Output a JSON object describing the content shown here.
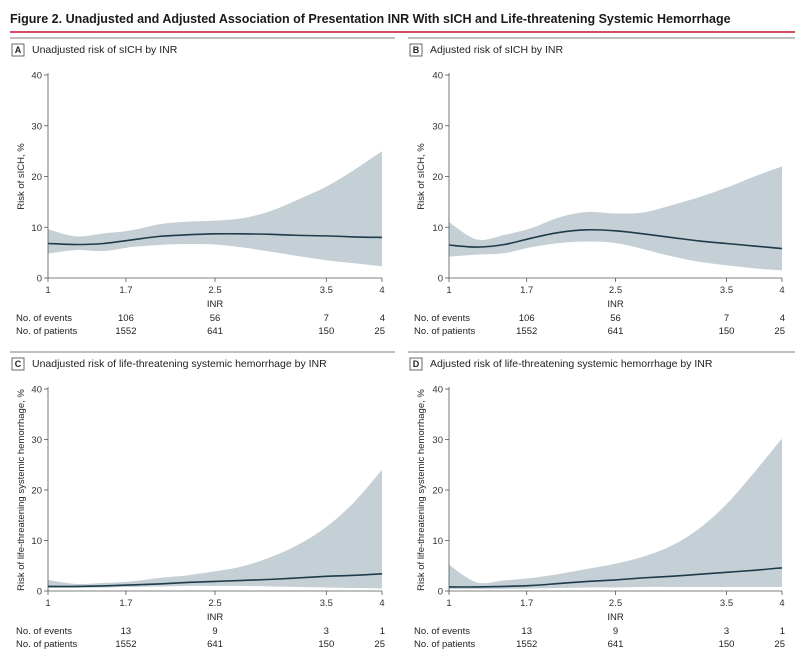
{
  "figure": {
    "title": "Figure 2. Unadjusted and Adjusted Association of Presentation INR With sICH and Life-threatening Systemic Hemorrhage",
    "accent_color": "#c8102e",
    "band_color": "#c5d0d6",
    "line_color": "#1d3b4a",
    "axis_color": "#555555"
  },
  "chart_data": [
    {
      "type": "area",
      "letter": "A",
      "title": "Unadjusted risk of sICH by INR",
      "xlabel": "INR",
      "ylabel": "Risk of sICH, %",
      "xlim": [
        1,
        4
      ],
      "ylim": [
        0,
        40
      ],
      "xticks": [
        1,
        1.7,
        2.5,
        3.5,
        4
      ],
      "yticks": [
        0,
        10,
        20,
        30,
        40
      ],
      "grid": false,
      "series": [
        {
          "x": [
            1,
            1.25,
            1.5,
            1.75,
            2,
            2.25,
            2.5,
            2.75,
            3,
            3.25,
            3.5,
            3.75,
            4
          ],
          "y": [
            6.8,
            6.6,
            6.8,
            7.5,
            8.2,
            8.5,
            8.7,
            8.7,
            8.6,
            8.4,
            8.3,
            8.1,
            8.0
          ],
          "lower": [
            4.8,
            5.5,
            5.3,
            6.1,
            6.5,
            6.7,
            6.6,
            6.0,
            5.2,
            4.3,
            3.5,
            2.9,
            2.3
          ],
          "upper": [
            9.6,
            8.2,
            8.8,
            9.4,
            10.6,
            11.1,
            11.3,
            11.8,
            13.2,
            15.5,
            18.0,
            21.3,
            25.0
          ]
        }
      ],
      "table": {
        "rows": [
          {
            "label": "No. of events",
            "values": [
              {
                "x": 1.7,
                "v": "106"
              },
              {
                "x": 2.5,
                "v": "56"
              },
              {
                "x": 3.5,
                "v": "7"
              },
              {
                "x": 4,
                "v": "4"
              }
            ]
          },
          {
            "label": "No. of patients",
            "values": [
              {
                "x": 1.7,
                "v": "1552"
              },
              {
                "x": 2.5,
                "v": "641"
              },
              {
                "x": 3.5,
                "v": "150"
              },
              {
                "x": 4,
                "v": "25"
              }
            ]
          }
        ]
      }
    },
    {
      "type": "area",
      "letter": "B",
      "title": "Adjusted risk of sICH by INR",
      "xlabel": "INR",
      "ylabel": "Risk of sICH, %",
      "xlim": [
        1,
        4
      ],
      "ylim": [
        0,
        40
      ],
      "xticks": [
        1,
        1.7,
        2.5,
        3.5,
        4
      ],
      "yticks": [
        0,
        10,
        20,
        30,
        40
      ],
      "grid": false,
      "series": [
        {
          "x": [
            1,
            1.25,
            1.5,
            1.75,
            2,
            2.25,
            2.5,
            2.75,
            3,
            3.25,
            3.5,
            3.75,
            4
          ],
          "y": [
            6.5,
            6.1,
            6.6,
            7.9,
            9.0,
            9.5,
            9.3,
            8.7,
            8.0,
            7.3,
            6.8,
            6.3,
            5.8
          ],
          "lower": [
            4.2,
            4.6,
            4.9,
            6.1,
            6.9,
            7.2,
            6.9,
            5.7,
            4.3,
            3.2,
            2.5,
            1.9,
            1.5
          ],
          "upper": [
            11.0,
            7.6,
            8.5,
            9.9,
            12.0,
            13.0,
            12.7,
            12.9,
            14.3,
            15.9,
            17.8,
            20.0,
            22.0
          ]
        }
      ],
      "table": {
        "rows": [
          {
            "label": "No. of events",
            "values": [
              {
                "x": 1.7,
                "v": "106"
              },
              {
                "x": 2.5,
                "v": "56"
              },
              {
                "x": 3.5,
                "v": "7"
              },
              {
                "x": 4,
                "v": "4"
              }
            ]
          },
          {
            "label": "No. of patients",
            "values": [
              {
                "x": 1.7,
                "v": "1552"
              },
              {
                "x": 2.5,
                "v": "641"
              },
              {
                "x": 3.5,
                "v": "150"
              },
              {
                "x": 4,
                "v": "25"
              }
            ]
          }
        ]
      }
    },
    {
      "type": "area",
      "letter": "C",
      "title": "Unadjusted risk of life-threatening systemic hemorrhage by INR",
      "xlabel": "INR",
      "ylabel": "Risk of life-threatening systemic hemorrhage, %",
      "xlim": [
        1,
        4
      ],
      "ylim": [
        0,
        40
      ],
      "xticks": [
        1,
        1.7,
        2.5,
        3.5,
        4
      ],
      "yticks": [
        0,
        10,
        20,
        30,
        40
      ],
      "grid": false,
      "series": [
        {
          "x": [
            1,
            1.25,
            1.5,
            1.75,
            2,
            2.25,
            2.5,
            2.75,
            3,
            3.25,
            3.5,
            3.75,
            4
          ],
          "y": [
            0.9,
            0.9,
            1.0,
            1.2,
            1.4,
            1.7,
            1.9,
            2.1,
            2.3,
            2.6,
            2.9,
            3.1,
            3.4
          ],
          "lower": [
            0.6,
            0.6,
            0.7,
            0.8,
            0.9,
            1.0,
            1.0,
            1.0,
            0.9,
            0.8,
            0.7,
            0.6,
            0.5
          ],
          "upper": [
            2.2,
            1.4,
            1.6,
            1.9,
            2.6,
            3.1,
            3.9,
            4.9,
            6.7,
            9.2,
            12.7,
            17.6,
            24.0
          ]
        }
      ],
      "table": {
        "rows": [
          {
            "label": "No. of events",
            "values": [
              {
                "x": 1.7,
                "v": "13"
              },
              {
                "x": 2.5,
                "v": "9"
              },
              {
                "x": 3.5,
                "v": "3"
              },
              {
                "x": 4,
                "v": "1"
              }
            ]
          },
          {
            "label": "No. of patients",
            "values": [
              {
                "x": 1.7,
                "v": "1552"
              },
              {
                "x": 2.5,
                "v": "641"
              },
              {
                "x": 3.5,
                "v": "150"
              },
              {
                "x": 4,
                "v": "25"
              }
            ]
          }
        ]
      }
    },
    {
      "type": "area",
      "letter": "D",
      "title": "Adjusted risk of life-threatening systemic hemorrhage by INR",
      "xlabel": "INR",
      "ylabel": "Risk of life-threatening systemic hemorrhage, %",
      "xlim": [
        1,
        4
      ],
      "ylim": [
        0,
        40
      ],
      "xticks": [
        1,
        1.7,
        2.5,
        3.5,
        4
      ],
      "yticks": [
        0,
        10,
        20,
        30,
        40
      ],
      "grid": false,
      "series": [
        {
          "x": [
            1,
            1.25,
            1.5,
            1.75,
            2,
            2.25,
            2.5,
            2.75,
            3,
            3.25,
            3.5,
            3.75,
            4
          ],
          "y": [
            0.8,
            0.8,
            0.9,
            1.1,
            1.5,
            1.9,
            2.2,
            2.6,
            2.9,
            3.3,
            3.7,
            4.1,
            4.6
          ],
          "lower": [
            0.4,
            0.4,
            0.4,
            0.5,
            0.6,
            0.7,
            0.7,
            0.8,
            0.8,
            0.8,
            0.8,
            0.8,
            0.8
          ],
          "upper": [
            5.2,
            1.7,
            2.1,
            2.6,
            3.4,
            4.4,
            5.4,
            6.8,
            8.9,
            12.3,
            17.2,
            23.5,
            30.2
          ]
        }
      ],
      "table": {
        "rows": [
          {
            "label": "No. of events",
            "values": [
              {
                "x": 1.7,
                "v": "13"
              },
              {
                "x": 2.5,
                "v": "9"
              },
              {
                "x": 3.5,
                "v": "3"
              },
              {
                "x": 4,
                "v": "1"
              }
            ]
          },
          {
            "label": "No. of patients",
            "values": [
              {
                "x": 1.7,
                "v": "1552"
              },
              {
                "x": 2.5,
                "v": "641"
              },
              {
                "x": 3.5,
                "v": "150"
              },
              {
                "x": 4,
                "v": "25"
              }
            ]
          }
        ]
      }
    }
  ]
}
